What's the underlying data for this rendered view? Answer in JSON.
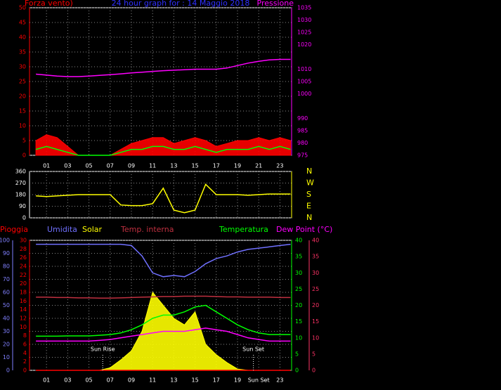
{
  "chart_data": [
    {
      "type": "line",
      "title": "24 hour graph for : 14 Maggio 2018",
      "grid": true,
      "xlim": [
        -0.6,
        24.1
      ],
      "xticks": [
        {
          "value": 1,
          "label": "01"
        },
        {
          "value": 3,
          "label": "03"
        },
        {
          "value": 5,
          "label": "05"
        },
        {
          "value": 7,
          "label": "07"
        },
        {
          "value": 9,
          "label": "09"
        },
        {
          "value": 11,
          "label": "11"
        },
        {
          "value": 13,
          "label": "13"
        },
        {
          "value": 15,
          "label": "15"
        },
        {
          "value": 17,
          "label": "17"
        },
        {
          "value": 19,
          "label": "19"
        },
        {
          "value": 21,
          "label": "21"
        },
        {
          "value": 23,
          "label": "23"
        }
      ],
      "x": [
        0,
        1,
        2,
        3,
        4,
        5,
        6,
        7,
        8,
        9,
        10,
        11,
        12,
        13,
        14,
        15,
        16,
        17,
        18,
        19,
        20,
        21,
        22,
        23,
        24
      ],
      "y_axes": [
        {
          "lim": [
            0,
            50
          ],
          "ticks": [
            0,
            5,
            10,
            15,
            20,
            25,
            30,
            35,
            40,
            45,
            50
          ],
          "color": "#ff0000"
        },
        {
          "lim": [
            975,
            1035
          ],
          "ticks": [
            975,
            980,
            985,
            990,
            1000,
            1005,
            1010,
            1020,
            1025,
            1030,
            1035
          ],
          "color": "#ff00ff"
        }
      ],
      "series": [
        {
          "name": "Forza vento)",
          "color": "#ff0000",
          "axis": 0,
          "style": "area",
          "values": [
            5,
            7,
            6,
            3,
            0,
            0,
            0,
            0,
            2,
            4,
            5,
            6,
            6,
            4,
            5,
            6,
            5,
            3,
            4,
            5,
            5,
            6,
            5,
            6,
            5
          ]
        },
        {
          "color": "#00ff00",
          "axis": 0,
          "style": "line",
          "values": [
            2,
            3,
            2,
            1,
            0,
            0,
            0,
            0,
            1,
            2,
            2,
            3,
            3,
            2,
            2,
            3,
            2,
            1,
            2,
            2,
            2,
            3,
            2,
            3,
            2
          ]
        },
        {
          "name": "Pressione",
          "color": "#ff00ff",
          "axis": 1,
          "style": "line",
          "values": [
            1008,
            1007.6,
            1007.2,
            1007,
            1007,
            1007.2,
            1007.5,
            1007.8,
            1008.1,
            1008.5,
            1008.8,
            1009.1,
            1009.4,
            1009.6,
            1009.8,
            1010,
            1010,
            1010,
            1010.5,
            1011.5,
            1012.5,
            1013.2,
            1013.8,
            1014,
            1014
          ]
        }
      ]
    },
    {
      "type": "line",
      "grid": true,
      "xlim": [
        -0.6,
        24.1
      ],
      "xticks": [
        1,
        3,
        5,
        7,
        9,
        11,
        13,
        15,
        17,
        19,
        21,
        23
      ],
      "x": [
        0,
        1,
        2,
        3,
        4,
        5,
        6,
        7,
        8,
        9,
        10,
        11,
        12,
        13,
        14,
        15,
        16,
        17,
        18,
        19,
        20,
        21,
        22,
        23,
        24
      ],
      "y_axes": [
        {
          "lim": [
            0,
            360
          ],
          "ticks": [
            0,
            90,
            180,
            270,
            360
          ],
          "color": "#ffffff"
        },
        {
          "lim": [
            0,
            360
          ],
          "ticks": [
            {
              "value": 360,
              "label": "N"
            },
            {
              "value": 270,
              "label": "W"
            },
            {
              "value": 180,
              "label": "S"
            },
            {
              "value": 90,
              "label": "E"
            },
            {
              "value": 0,
              "label": "N"
            }
          ],
          "color": "#ffff00"
        }
      ],
      "series": [
        {
          "color": "#ffff00",
          "axis": 0,
          "style": "line",
          "values": [
            170,
            165,
            170,
            175,
            180,
            180,
            180,
            180,
            100,
            95,
            95,
            110,
            230,
            60,
            40,
            60,
            260,
            180,
            180,
            180,
            175,
            180,
            185,
            185,
            185
          ]
        }
      ]
    },
    {
      "type": "line",
      "grid": true,
      "xlim": [
        -0.6,
        24.1
      ],
      "xticks": [
        {
          "value": 1,
          "label": "01"
        },
        {
          "value": 3,
          "label": "03"
        },
        {
          "value": 5,
          "label": "05"
        },
        {
          "value": 7,
          "label": "07"
        },
        {
          "value": 9,
          "label": "09"
        },
        {
          "value": 11,
          "label": "11"
        },
        {
          "value": 13,
          "label": "13"
        },
        {
          "value": 15,
          "label": "15"
        },
        {
          "value": 17,
          "label": "17"
        },
        {
          "value": 19,
          "label": "19"
        },
        {
          "value": 21,
          "label": "Sun Set"
        },
        {
          "value": 23,
          "label": "23"
        }
      ],
      "x": [
        0,
        1,
        2,
        3,
        4,
        5,
        6,
        7,
        8,
        9,
        10,
        11,
        12,
        13,
        14,
        15,
        16,
        17,
        18,
        19,
        20,
        21,
        22,
        23,
        24
      ],
      "y_axes": [
        {
          "lim": [
            0,
            100
          ],
          "ticks": [
            0,
            10,
            20,
            30,
            40,
            50,
            60,
            70,
            80,
            90,
            100
          ],
          "color": "#8080ff"
        },
        {
          "lim": [
            0,
            30
          ],
          "ticks": [
            0,
            2,
            4,
            6,
            8,
            10,
            12,
            14,
            16,
            18,
            20,
            22,
            24,
            26,
            28,
            30
          ],
          "color": "#ff0000"
        },
        {
          "lim": [
            0,
            40
          ],
          "ticks": [
            0,
            5,
            10,
            15,
            20,
            25,
            30,
            35,
            40
          ],
          "color": "#00ff00"
        },
        {
          "lim": [
            0,
            40
          ],
          "ticks": [
            0,
            5,
            10,
            15,
            20,
            25,
            30,
            35,
            40
          ],
          "color": "#ff3366"
        }
      ],
      "series": [
        {
          "name": "Pioggia",
          "color": "#ff0000",
          "axis": 1,
          "style": "line",
          "values": [
            0,
            0,
            0,
            0,
            0,
            0,
            0,
            0,
            0,
            0,
            0,
            0,
            0,
            0,
            0,
            0,
            0,
            0,
            0,
            0,
            0,
            0,
            0,
            0,
            0
          ]
        },
        {
          "name": "Umidita",
          "color": "#7070ff",
          "axis": 0,
          "style": "line",
          "values": [
            97,
            97,
            97,
            97,
            97,
            97,
            97,
            97,
            97,
            96,
            88,
            75,
            72,
            73,
            72,
            76,
            82,
            86,
            88,
            91,
            93,
            94,
            95,
            96,
            97
          ]
        },
        {
          "name": "Solar",
          "color": "#ffff00",
          "axis": 0,
          "style": "area",
          "values": [
            0,
            0,
            0,
            0,
            0,
            0,
            0,
            2,
            8,
            15,
            30,
            60,
            50,
            40,
            35,
            45,
            20,
            12,
            6,
            1,
            0,
            0,
            0,
            0,
            0
          ]
        },
        {
          "name": "Temp. interna",
          "color": "#c03040",
          "axis": 2,
          "style": "line",
          "values": [
            22.5,
            22.5,
            22.4,
            22.4,
            22.3,
            22.3,
            22.2,
            22.2,
            22.3,
            22.4,
            22.5,
            22.6,
            22.7,
            22.7,
            22.8,
            22.8,
            22.8,
            22.7,
            22.6,
            22.6,
            22.5,
            22.5,
            22.5,
            22.4,
            22.4
          ]
        },
        {
          "name": "Temperatura",
          "color": "#00ff00",
          "axis": 2,
          "style": "line",
          "values": [
            10.5,
            10.5,
            10.5,
            10.6,
            10.6,
            10.6,
            10.8,
            11,
            11.5,
            12.5,
            14,
            16,
            17,
            17,
            18,
            19.5,
            20,
            18,
            16,
            14,
            12.5,
            11.5,
            11,
            11,
            11
          ]
        },
        {
          "name": "Dew Point (°C)",
          "color": "#ff00ff",
          "axis": 3,
          "style": "line",
          "values": [
            9,
            9,
            9,
            9,
            9,
            9,
            9.2,
            9.5,
            10,
            10.5,
            11,
            11.5,
            12,
            12,
            12,
            12.5,
            13,
            12.5,
            12,
            11,
            10,
            9.5,
            9,
            9,
            9
          ]
        }
      ],
      "annotations": [
        {
          "text": "Sun Rise",
          "x": 6.3
        },
        {
          "text": "Sun Set",
          "x": 20.5
        }
      ]
    }
  ]
}
